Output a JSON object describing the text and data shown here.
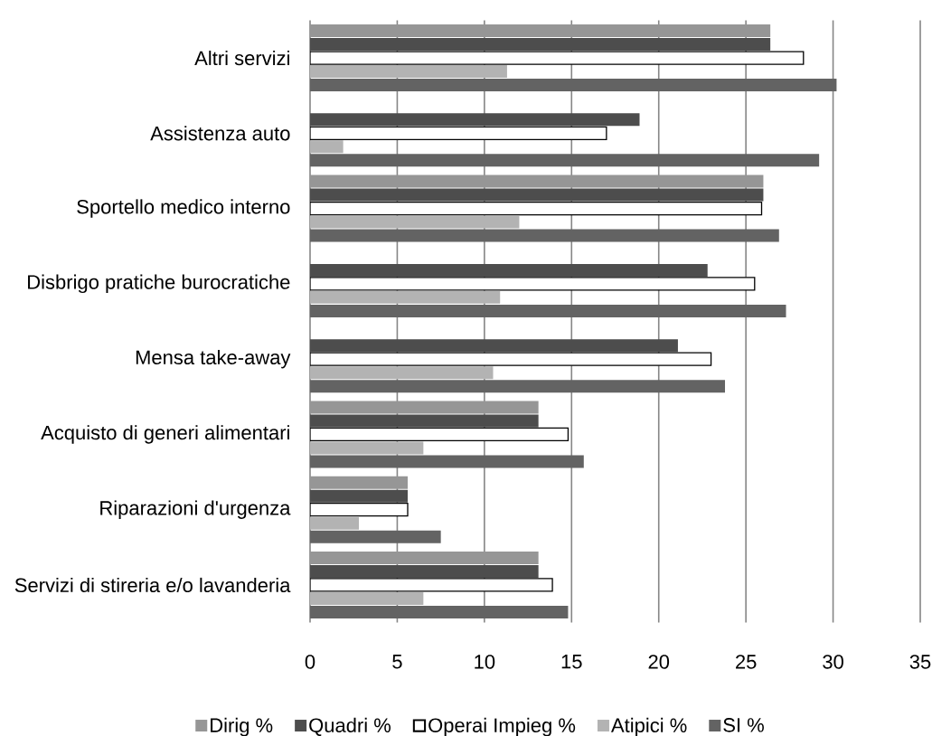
{
  "chart_data": {
    "type": "bar",
    "orientation": "horizontal",
    "categories": [
      "Altri servizi",
      "Assistenza auto",
      "Sportello medico interno",
      "Disbrigo pratiche burocratiche",
      "Mensa take-away",
      "Acquisto di generi alimentari",
      "Riparazioni d'urgenza",
      "Servizi di stireria e/o lavanderia"
    ],
    "series": [
      {
        "name": "Dirig %",
        "color": "#969696",
        "values": [
          26.4,
          0,
          26.0,
          0,
          0,
          13.1,
          5.6,
          13.1
        ]
      },
      {
        "name": "Quadri %",
        "color": "#4d4d4d",
        "values": [
          26.4,
          18.9,
          26.0,
          22.8,
          21.1,
          13.1,
          5.6,
          13.1
        ]
      },
      {
        "name": "Operai Impieg %",
        "color": "#ffffff",
        "values": [
          28.3,
          17.0,
          25.9,
          25.5,
          23.0,
          14.8,
          5.6,
          13.9
        ]
      },
      {
        "name": "Atipici %",
        "color": "#b3b3b3",
        "values": [
          11.3,
          1.9,
          12.0,
          10.9,
          10.5,
          6.5,
          2.8,
          6.5
        ]
      },
      {
        "name": "SI %",
        "color": "#636363",
        "values": [
          30.2,
          29.2,
          26.9,
          27.3,
          23.8,
          15.7,
          7.5,
          14.8
        ]
      }
    ],
    "xlim": [
      0,
      35
    ],
    "xticks": [
      0,
      5,
      10,
      15,
      20,
      25,
      30,
      35
    ],
    "grid": "x",
    "legend": "bottom"
  }
}
